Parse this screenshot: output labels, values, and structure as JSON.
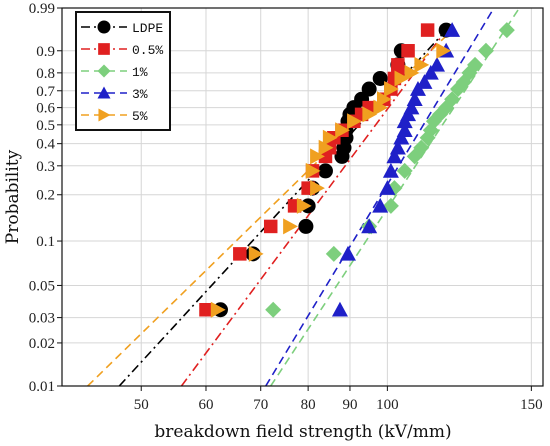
{
  "chart_data": {
    "type": "scatter",
    "xlabel": "breakdown field strength (kV/mm)",
    "ylabel": "Probability",
    "x_scale": "log",
    "y_scale": "weibull-probability",
    "xlim": [
      40,
      155
    ],
    "ylim": [
      0.01,
      0.99
    ],
    "x_ticks": [
      50,
      60,
      70,
      80,
      90,
      100,
      150
    ],
    "x_tick_labels": [
      "50",
      "60",
      "70",
      "80",
      "90",
      "100",
      "150"
    ],
    "y_ticks": [
      0.01,
      0.02,
      0.03,
      0.05,
      0.1,
      0.2,
      0.3,
      0.4,
      0.5,
      0.6,
      0.7,
      0.8,
      0.9,
      0.99
    ],
    "y_tick_labels": [
      "0.01",
      "0.02",
      "0.03",
      "0.05",
      "0.1",
      "0.2",
      "0.3",
      "0.4",
      "0.5",
      "0.6",
      "0.7",
      "0.8",
      "0.9",
      "0.99"
    ],
    "grid": true,
    "legend_position": "top-left",
    "series": [
      {
        "name": "LDPE",
        "color": "#000000",
        "marker": "circle",
        "line_style": "dash-dot",
        "x": [
          62.5,
          68.5,
          79.5,
          80,
          81,
          84,
          88,
          88.5,
          89,
          89,
          89.5,
          90,
          91,
          93,
          95,
          98,
          103,
          104,
          118
        ],
        "y": [
          0.034,
          0.082,
          0.125,
          0.17,
          0.22,
          0.28,
          0.34,
          0.38,
          0.43,
          0.47,
          0.52,
          0.56,
          0.6,
          0.65,
          0.71,
          0.77,
          0.84,
          0.9,
          0.96
        ],
        "fit_line": {
          "x": [
            47,
            118
          ],
          "y": [
            0.01,
            0.96
          ]
        }
      },
      {
        "name": "0.5%",
        "color": "#e02020",
        "marker": "square",
        "line_style": "dash-dot",
        "x": [
          60,
          66,
          72,
          77,
          80,
          81,
          84,
          85,
          86,
          88,
          91,
          93,
          95,
          99,
          101,
          102,
          103,
          103,
          106,
          112
        ],
        "y": [
          0.034,
          0.082,
          0.125,
          0.17,
          0.22,
          0.28,
          0.34,
          0.38,
          0.43,
          0.47,
          0.52,
          0.56,
          0.6,
          0.65,
          0.71,
          0.77,
          0.8,
          0.84,
          0.9,
          0.96
        ],
        "fit_line": {
          "x": [
            56,
            118
          ],
          "y": [
            0.01,
            0.96
          ]
        }
      },
      {
        "name": "1%",
        "color": "#7dcf7d",
        "marker": "diamond",
        "line_style": "dash",
        "x": [
          72.5,
          86,
          95,
          101,
          102,
          105,
          108,
          110,
          112,
          113,
          114,
          116,
          118,
          120,
          122,
          124,
          126,
          128,
          132,
          140
        ],
        "y": [
          0.034,
          0.082,
          0.125,
          0.17,
          0.22,
          0.28,
          0.34,
          0.38,
          0.43,
          0.47,
          0.52,
          0.56,
          0.6,
          0.65,
          0.71,
          0.75,
          0.8,
          0.84,
          0.9,
          0.96
        ],
        "fit_line": {
          "x": [
            72,
            145
          ],
          "y": [
            0.01,
            0.99
          ]
        }
      },
      {
        "name": "3%",
        "color": "#1f20c8",
        "marker": "triangle-up",
        "line_style": "dash",
        "x": [
          87.5,
          89.5,
          95,
          98,
          100,
          101,
          102,
          103,
          104,
          105,
          105,
          106,
          107,
          108,
          109,
          111,
          113,
          115,
          118,
          120
        ],
        "y": [
          0.034,
          0.082,
          0.125,
          0.17,
          0.22,
          0.28,
          0.34,
          0.38,
          0.43,
          0.47,
          0.52,
          0.56,
          0.6,
          0.65,
          0.71,
          0.75,
          0.8,
          0.84,
          0.9,
          0.96
        ],
        "fit_line": {
          "x": [
            71,
            135
          ],
          "y": [
            0.01,
            0.99
          ]
        }
      },
      {
        "name": "5%",
        "color": "#f0a020",
        "marker": "triangle-right",
        "line_style": "dash",
        "x": [
          62,
          69,
          76,
          79,
          82,
          81,
          82,
          84,
          85,
          88,
          91,
          95,
          98,
          99,
          101,
          104,
          107,
          110,
          117
        ],
        "y": [
          0.034,
          0.082,
          0.125,
          0.17,
          0.22,
          0.28,
          0.34,
          0.38,
          0.43,
          0.47,
          0.52,
          0.56,
          0.6,
          0.65,
          0.71,
          0.77,
          0.8,
          0.84,
          0.9
        ],
        "fit_line": {
          "x": [
            43,
            120
          ],
          "y": [
            0.01,
            0.96
          ]
        }
      }
    ]
  }
}
